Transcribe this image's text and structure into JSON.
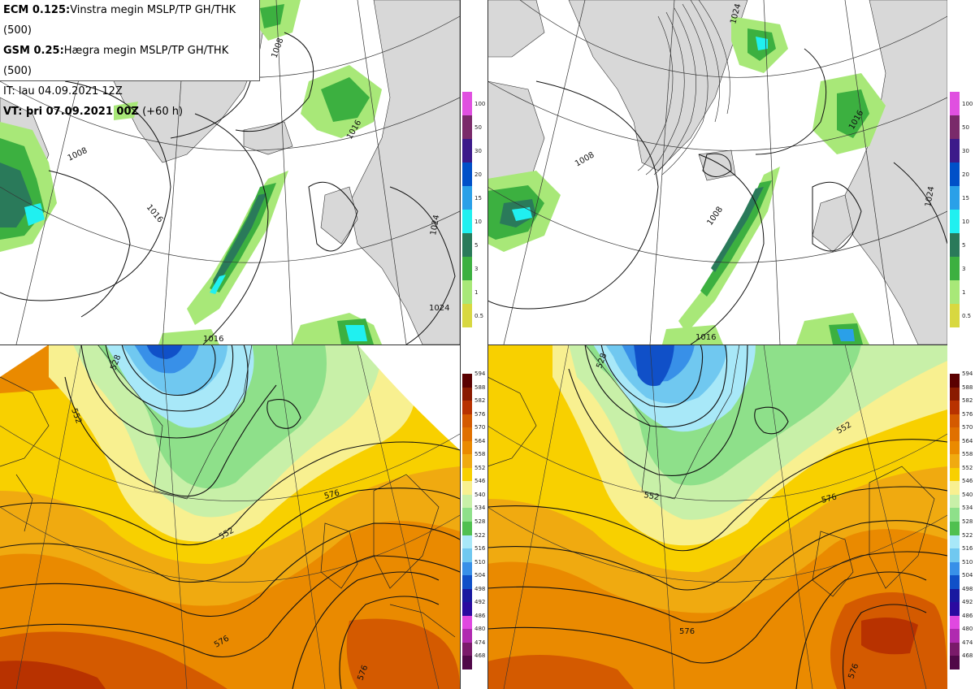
{
  "info": {
    "line1_model": "ECM 0.125:",
    "line1_text": "Vinstra megin MSLP/TP GH/THK (500)",
    "line2_model": "GSM 0.25:",
    "line2_text": "Hægra megin MSLP/TP GH/THK (500)",
    "line3_text": "IT: lau 04.09.2021 12Z",
    "line4_label": "VT: þri 07.09.2021 00Z",
    "line4_extra": "(+60 h)"
  },
  "panels": {
    "ecm_top": {
      "isobar_labels": [
        "1008",
        "1016",
        "1016",
        "1016",
        "1024",
        "1024",
        "1008"
      ]
    },
    "gsm_top": {
      "isobar_labels": [
        "1008",
        "1008",
        "1016",
        "1016",
        "1024",
        "1024"
      ]
    },
    "ecm_bot": {
      "height_labels": [
        "528",
        "552",
        "552",
        "576",
        "576",
        "576"
      ]
    },
    "gsm_bot": {
      "height_labels": [
        "528",
        "552",
        "552",
        "576",
        "576",
        "576"
      ]
    }
  },
  "precip_colorbar": {
    "labels": [
      "100",
      "50",
      "30",
      "20",
      "15",
      "10",
      "5",
      "3",
      "1",
      "0.5"
    ],
    "colors": [
      "#e050e0",
      "#7a2a6a",
      "#3c1a8a",
      "#0050c8",
      "#2aa0e8",
      "#20f0f0",
      "#2a7a5a",
      "#3cb040",
      "#a8e878",
      "#d8d840"
    ]
  },
  "height_colorbar": {
    "labels": [
      "594",
      "588",
      "582",
      "576",
      "570",
      "564",
      "558",
      "552",
      "546",
      "540",
      "534",
      "528",
      "522",
      "516",
      "510",
      "504",
      "498",
      "492",
      "486",
      "480",
      "474",
      "468"
    ],
    "colors": [
      "#5a0000",
      "#8a1a00",
      "#b83200",
      "#d45a00",
      "#e07000",
      "#ea8a00",
      "#f0aa10",
      "#f8d000",
      "#f8f090",
      "#c8f0a8",
      "#8ee08a",
      "#50c050",
      "#a8e8f8",
      "#70c8f0",
      "#3890e8",
      "#1050c8",
      "#1818a0",
      "#2a0aa0",
      "#e048e0",
      "#b02ab0",
      "#7a1a6a",
      "#500848"
    ]
  }
}
